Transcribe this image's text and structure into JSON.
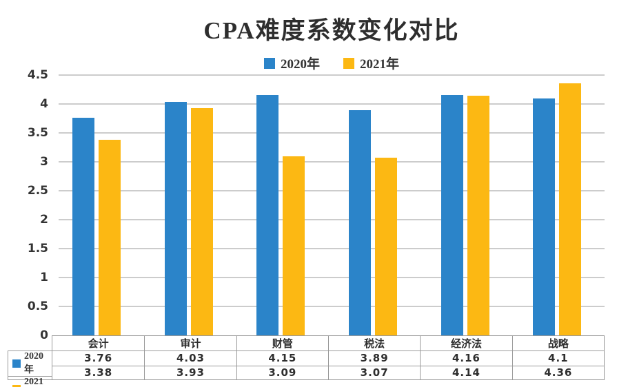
{
  "title": "CPA难度系数变化对比",
  "colors": {
    "series_2020": "#2B84C9",
    "series_2021": "#FCB813",
    "grid": "#cccccc",
    "text": "#2e2e2e",
    "table_border": "#999999"
  },
  "legend": {
    "items": [
      {
        "label": "2020年",
        "color": "#2B84C9"
      },
      {
        "label": "2021年",
        "color": "#FCB813"
      }
    ]
  },
  "y_axis": {
    "ticks": [
      "4.5",
      "4",
      "3.5",
      "3",
      "2.5",
      "2",
      "1.5",
      "1",
      "0.5",
      "0"
    ]
  },
  "chart_data": {
    "type": "bar",
    "title": "CPA难度系数变化对比",
    "categories": [
      "会计",
      "审计",
      "财管",
      "税法",
      "经济法",
      "战略"
    ],
    "series": [
      {
        "name": "2020年",
        "color": "#2B84C9",
        "values": [
          3.76,
          4.03,
          4.15,
          3.89,
          4.16,
          4.1
        ]
      },
      {
        "name": "2021年",
        "color": "#FCB813",
        "values": [
          3.38,
          3.93,
          3.09,
          3.07,
          4.14,
          4.36
        ]
      }
    ],
    "table_display_values": [
      [
        "3.76",
        "4.03",
        "4.15",
        "3.89",
        "4.16",
        "4.1"
      ],
      [
        "3.38",
        "3.93",
        "3.09",
        "3.07",
        "4.14",
        "4.36"
      ]
    ],
    "xlabel": "",
    "ylabel": "",
    "ylim": [
      0,
      4.5
    ],
    "ytick_step": 0.5,
    "grid": true,
    "legend_position": "top"
  }
}
